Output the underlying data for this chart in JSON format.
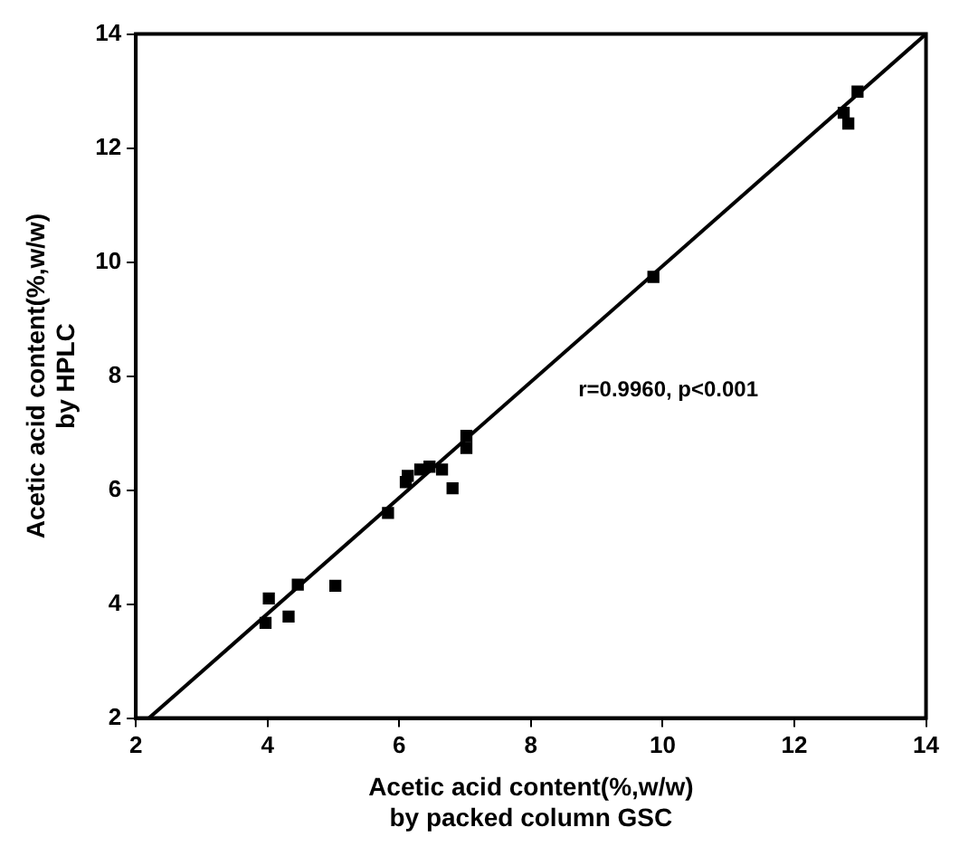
{
  "chart_data": {
    "type": "scatter",
    "xlabel": "Acetic acid content(%,w/w)\nby packed column GSC",
    "ylabel": "Acetic acid content(%,w/w)\nby HPLC",
    "xlim": [
      2,
      14
    ],
    "ylim": [
      2,
      14
    ],
    "xticks": [
      2,
      4,
      6,
      8,
      10,
      12,
      14
    ],
    "yticks": [
      2,
      4,
      6,
      8,
      10,
      12,
      14
    ],
    "grid": false,
    "legend": false,
    "marker": "square",
    "annotations": [
      "r=0.9960, p<0.001"
    ],
    "series": [
      {
        "color": "#000000",
        "x": [
          4.02,
          3.97,
          4.32,
          4.46,
          5.03,
          5.83,
          6.1,
          6.13,
          6.32,
          6.46,
          6.65,
          6.81,
          7.02,
          7.02,
          9.86,
          12.75,
          12.82,
          12.96
        ],
        "values": [
          4.1,
          3.67,
          3.78,
          4.34,
          4.32,
          5.6,
          6.14,
          6.25,
          6.36,
          6.41,
          6.36,
          6.03,
          6.95,
          6.74,
          9.74,
          12.62,
          12.43,
          12.99
        ]
      },
      {
        "type": "line",
        "color": "#000000",
        "x": [
          2.2,
          14
        ],
        "values": [
          2,
          14
        ],
        "marker": "none"
      }
    ]
  }
}
